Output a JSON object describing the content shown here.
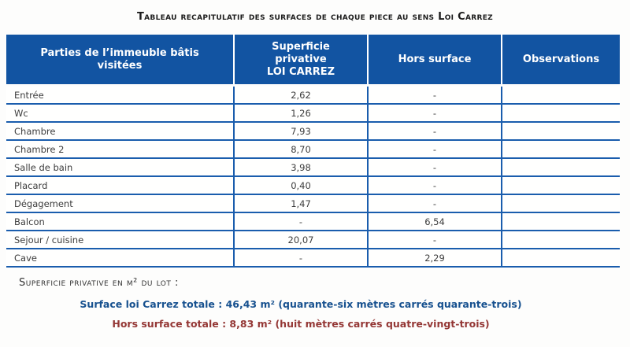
{
  "title": "Tableau recapitulatif des surfaces de chaque piece au sens Loi Carrez",
  "table": {
    "headers": {
      "parties": "Parties de l’immeuble bâtis\nvisitées",
      "superficie": "Superficie\nprivative\nLOI CARREZ",
      "hors": "Hors surface",
      "observations": "Observations"
    },
    "rows": [
      {
        "label": "Entrée",
        "carrez": "2,62",
        "hors": "-",
        "obs": ""
      },
      {
        "label": "Wc",
        "carrez": "1,26",
        "hors": "-",
        "obs": ""
      },
      {
        "label": "Chambre",
        "carrez": "7,93",
        "hors": "-",
        "obs": ""
      },
      {
        "label": "Chambre 2",
        "carrez": "8,70",
        "hors": "-",
        "obs": ""
      },
      {
        "label": "Salle de bain",
        "carrez": "3,98",
        "hors": "-",
        "obs": ""
      },
      {
        "label": "Placard",
        "carrez": "0,40",
        "hors": "-",
        "obs": ""
      },
      {
        "label": "Dégagement",
        "carrez": "1,47",
        "hors": "-",
        "obs": ""
      },
      {
        "label": "Balcon",
        "carrez": "-",
        "hors": "6,54",
        "obs": ""
      },
      {
        "label": "Sejour / cuisine",
        "carrez": "20,07",
        "hors": "-",
        "obs": ""
      },
      {
        "label": "Cave",
        "carrez": "-",
        "hors": "2,29",
        "obs": ""
      }
    ]
  },
  "summary": {
    "lot_label": "Superficie privative en m² du lot :",
    "carrez_total": "Surface loi Carrez totale : 46,43 m² (quarante-six mètres carrés quarante-trois)",
    "hors_total": "Hors surface totale : 8,83 m² (huit mètres carrés quatre-vingt-trois)"
  },
  "colors": {
    "header_background": "#1254a2",
    "header_text": "#ffffff",
    "grid_line_blue": "#1a5dad",
    "body_text": "#3d3d3d",
    "title_text": "#1c1c1c",
    "carrez_total_text": "#17518f",
    "hors_total_text": "#943735"
  }
}
